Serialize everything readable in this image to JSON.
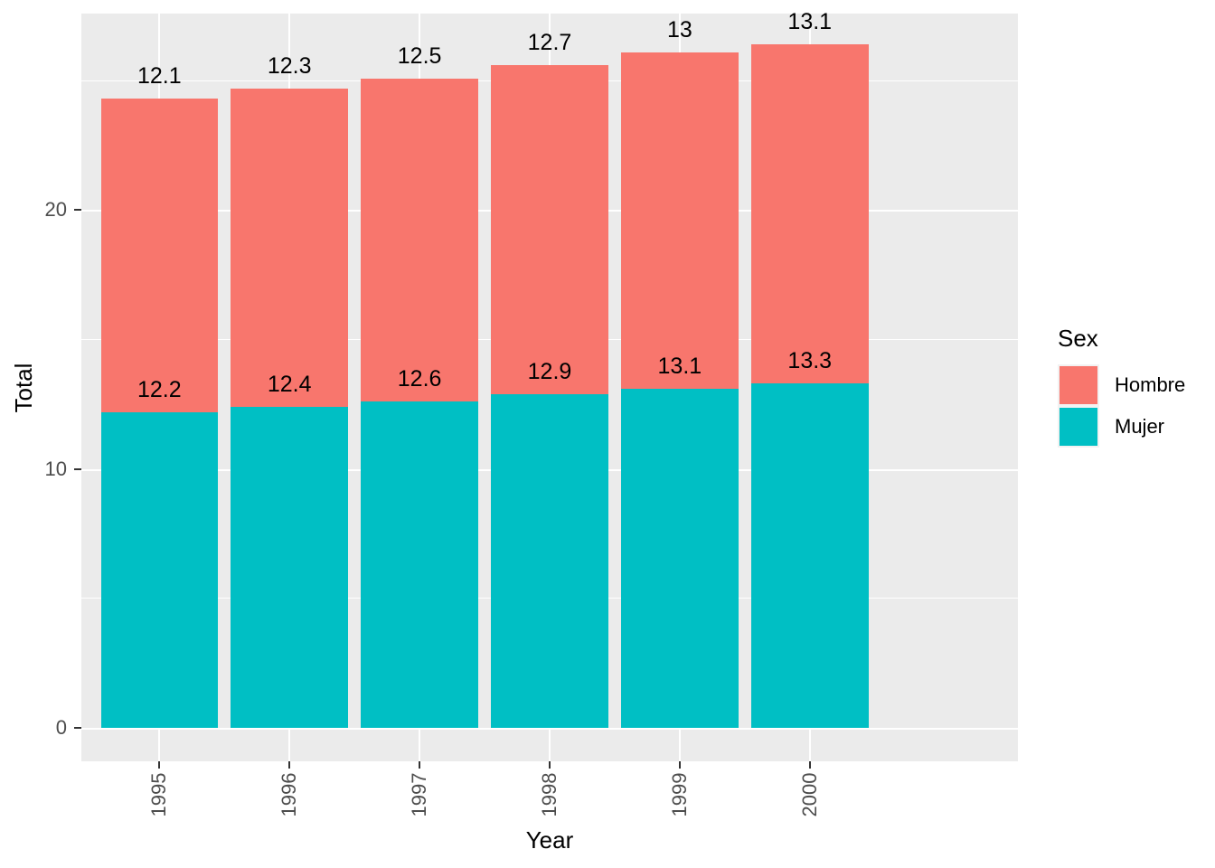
{
  "figure": {
    "background": "#FFFFFF"
  },
  "panel": {
    "background": "#EBEBEB",
    "grid_color": "#FFFFFF"
  },
  "axes": {
    "x": {
      "title": "Year",
      "tick_labels": [
        "1995",
        "1996",
        "1997",
        "1998",
        "1999",
        "2000"
      ]
    },
    "y": {
      "title": "Total",
      "tick_labels": [
        "0",
        "10",
        "20"
      ]
    }
  },
  "legend": {
    "title": "Sex",
    "position": "right",
    "entries": [
      {
        "label": "Hombre",
        "color": "#F8766D"
      },
      {
        "label": "Mujer",
        "color": "#00BFC4"
      }
    ]
  },
  "chart_data": {
    "type": "bar",
    "stacked": true,
    "title": "",
    "xlabel": "Year",
    "ylabel": "Total",
    "categories": [
      "1995",
      "1996",
      "1997",
      "1998",
      "1999",
      "2000"
    ],
    "series": [
      {
        "name": "Mujer",
        "color": "#00BFC4",
        "values": [
          12.2,
          12.4,
          12.6,
          12.9,
          13.1,
          13.3
        ],
        "labels": [
          "12.2",
          "12.4",
          "12.6",
          "12.9",
          "13.1",
          "13.3"
        ]
      },
      {
        "name": "Hombre",
        "color": "#F8766D",
        "values": [
          12.1,
          12.3,
          12.5,
          12.7,
          13,
          13.1
        ],
        "labels": [
          "12.1",
          "12.3",
          "12.5",
          "12.7",
          "13",
          "13.1"
        ]
      }
    ],
    "stack_totals": [
      24.3,
      24.7,
      25.1,
      25.6,
      26.1,
      26.4
    ],
    "y_major_ticks": [
      0,
      10,
      20
    ],
    "y_minor_ticks": [
      5,
      15,
      25
    ],
    "y_display_range": [
      -1.3,
      27.6
    ],
    "grid": true,
    "legend_position": "right",
    "tick_color": "#333333",
    "tick_label_color": "#4D4D4D"
  }
}
